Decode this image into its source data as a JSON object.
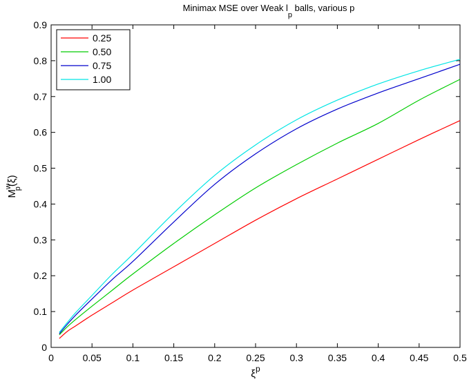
{
  "chart_data": {
    "type": "line",
    "title": {
      "main": "Minimax MSE over Weak l",
      "sub": "p",
      "rest": " balls, various p"
    },
    "xlabel": {
      "base": "ξ",
      "sup": "p"
    },
    "ylabel": {
      "base": "M",
      "sub": "p",
      "sup": "w",
      "rest": "(ξ)"
    },
    "xlim": [
      0,
      0.5
    ],
    "ylim": [
      0,
      0.9
    ],
    "x_ticks": [
      "0",
      "0.05",
      "0.1",
      "0.15",
      "0.2",
      "0.25",
      "0.3",
      "0.35",
      "0.4",
      "0.45",
      "0.5"
    ],
    "y_ticks": [
      "0",
      "0.1",
      "0.2",
      "0.3",
      "0.4",
      "0.5",
      "0.6",
      "0.7",
      "0.8",
      "0.9"
    ],
    "grid": false,
    "legend_position": "top-left",
    "x": [
      0.01,
      0.02,
      0.03,
      0.05,
      0.075,
      0.1,
      0.15,
      0.2,
      0.25,
      0.3,
      0.35,
      0.4,
      0.45,
      0.5
    ],
    "series": [
      {
        "name": "0.25",
        "color": "#ff0000",
        "values": [
          0.025,
          0.045,
          0.06,
          0.09,
          0.125,
          0.16,
          0.225,
          0.29,
          0.355,
          0.415,
          0.47,
          0.525,
          0.58,
          0.633
        ]
      },
      {
        "name": "0.50",
        "color": "#00cc00",
        "values": [
          0.035,
          0.058,
          0.078,
          0.115,
          0.16,
          0.205,
          0.29,
          0.37,
          0.445,
          0.51,
          0.57,
          0.625,
          0.69,
          0.748
        ]
      },
      {
        "name": "0.75",
        "color": "#0000cc",
        "values": [
          0.038,
          0.065,
          0.09,
          0.135,
          0.19,
          0.24,
          0.35,
          0.455,
          0.54,
          0.61,
          0.665,
          0.71,
          0.75,
          0.79
        ]
      },
      {
        "name": "1.00",
        "color": "#00e5e5",
        "values": [
          0.042,
          0.07,
          0.097,
          0.145,
          0.205,
          0.26,
          0.375,
          0.48,
          0.565,
          0.635,
          0.69,
          0.735,
          0.772,
          0.804
        ]
      }
    ]
  }
}
